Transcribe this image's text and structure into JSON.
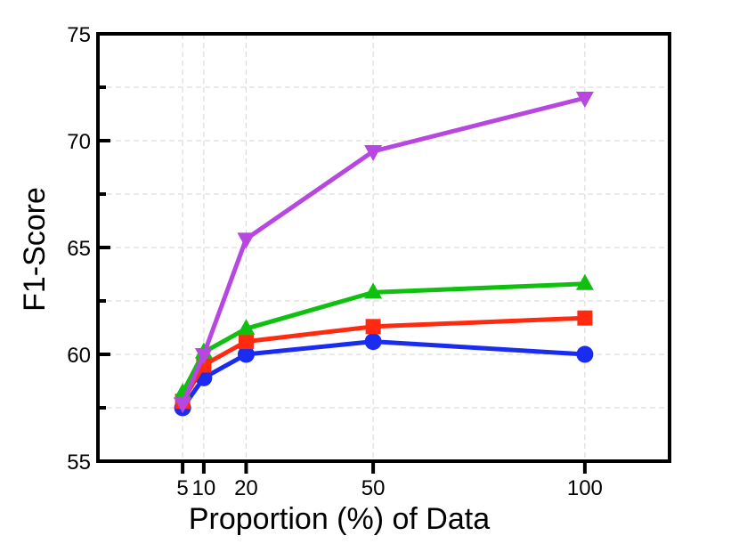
{
  "chart_data": {
    "type": "line",
    "title": "",
    "xlabel": "Proportion (%) of Data",
    "ylabel": "F1-Score",
    "x": [
      5,
      10,
      20,
      50,
      100
    ],
    "xticks": [
      5,
      10,
      20,
      50,
      100
    ],
    "xtick_labels": [
      "5",
      "10",
      "20",
      "50",
      "100"
    ],
    "xlim": [
      -15,
      120
    ],
    "ylim": [
      55,
      75
    ],
    "yticks": [
      55,
      60,
      65,
      70,
      75
    ],
    "ytick_labels": [
      "55",
      "60",
      "65",
      "70",
      "75"
    ],
    "grid": true,
    "legend": false,
    "series": [
      {
        "color": "#1a2cf0",
        "marker": "circle",
        "values": [
          57.5,
          58.9,
          60.0,
          60.6,
          60.0
        ]
      },
      {
        "color": "#ff2a0f",
        "marker": "square",
        "values": [
          57.8,
          59.5,
          60.6,
          61.3,
          61.7
        ]
      },
      {
        "color": "#10c010",
        "marker": "triangle-up",
        "values": [
          58.2,
          60.1,
          61.2,
          62.9,
          63.3
        ]
      },
      {
        "color": "#b846e0",
        "marker": "triangle-down",
        "values": [
          57.7,
          60.0,
          65.4,
          69.5,
          72.0
        ]
      }
    ]
  }
}
